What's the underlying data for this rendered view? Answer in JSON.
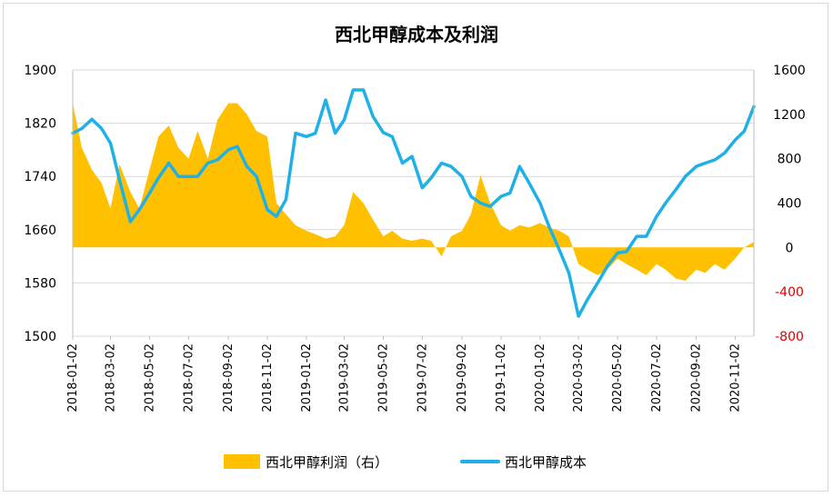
{
  "chart_data": {
    "type": "line",
    "title": "西北甲醇成本及利润",
    "left_axis": {
      "ylim": [
        1500,
        1900
      ],
      "ticks": [
        "1900",
        "1820",
        "1740",
        "1660",
        "1580",
        "1500"
      ]
    },
    "right_axis": {
      "ylim": [
        -800,
        1600
      ],
      "ticks": [
        "1600",
        "1200",
        "800",
        "400",
        "0",
        "-400",
        "-800"
      ],
      "negative_color": "#e00000"
    },
    "x_tick_labels": [
      "2018-01-02",
      "2018-03-02",
      "2018-05-02",
      "2018-07-02",
      "2018-09-02",
      "2018-11-02",
      "2019-01-02",
      "2019-03-02",
      "2019-05-02",
      "2019-07-02",
      "2019-09-02",
      "2019-11-02",
      "2020-01-02",
      "2020-03-02",
      "2020-05-02",
      "2020-07-02",
      "2020-09-02",
      "2020-11-02"
    ],
    "grid": true,
    "legend_position": "bottom",
    "series": [
      {
        "name": "西北甲醇利润（右）",
        "type": "area",
        "axis": "right",
        "color": "#ffc000",
        "x": [
          "2018-01-02",
          "2018-01-16",
          "2018-02-01",
          "2018-02-16",
          "2018-03-02",
          "2018-03-16",
          "2018-04-02",
          "2018-04-16",
          "2018-05-02",
          "2018-05-16",
          "2018-06-01",
          "2018-06-16",
          "2018-07-02",
          "2018-07-16",
          "2018-08-01",
          "2018-08-16",
          "2018-09-02",
          "2018-09-16",
          "2018-10-01",
          "2018-10-16",
          "2018-11-02",
          "2018-11-16",
          "2018-12-01",
          "2018-12-16",
          "2019-01-02",
          "2019-01-16",
          "2019-02-01",
          "2019-02-16",
          "2019-03-02",
          "2019-03-16",
          "2019-04-01",
          "2019-04-16",
          "2019-05-02",
          "2019-05-16",
          "2019-06-01",
          "2019-06-16",
          "2019-07-02",
          "2019-07-16",
          "2019-08-01",
          "2019-08-16",
          "2019-09-02",
          "2019-09-16",
          "2019-10-01",
          "2019-10-16",
          "2019-11-02",
          "2019-11-16",
          "2019-12-01",
          "2019-12-16",
          "2020-01-02",
          "2020-01-16",
          "2020-02-01",
          "2020-02-16",
          "2020-03-02",
          "2020-03-16",
          "2020-04-01",
          "2020-04-16",
          "2020-05-02",
          "2020-05-16",
          "2020-06-01",
          "2020-06-16",
          "2020-07-02",
          "2020-07-16",
          "2020-08-01",
          "2020-08-16",
          "2020-09-02",
          "2020-09-16",
          "2020-10-01",
          "2020-10-16",
          "2020-11-02",
          "2020-11-16",
          "2020-12-01"
        ],
        "values": [
          1300,
          900,
          700,
          580,
          350,
          750,
          500,
          350,
          700,
          1000,
          1100,
          900,
          800,
          1050,
          800,
          1150,
          1300,
          1300,
          1200,
          1050,
          1000,
          400,
          300,
          200,
          150,
          120,
          80,
          100,
          200,
          500,
          400,
          250,
          100,
          150,
          80,
          60,
          80,
          60,
          -80,
          100,
          150,
          300,
          650,
          400,
          200,
          150,
          200,
          180,
          220,
          180,
          150,
          100,
          -150,
          -200,
          -250,
          -200,
          -100,
          -150,
          -200,
          -250,
          -150,
          -200,
          -280,
          -300,
          -200,
          -230,
          -150,
          -200,
          -100,
          0,
          50
        ]
      },
      {
        "name": "西北甲醇成本",
        "type": "line",
        "axis": "left",
        "color": "#1fb1e6",
        "x": [
          "2018-01-02",
          "2018-01-16",
          "2018-02-01",
          "2018-02-16",
          "2018-03-02",
          "2018-03-16",
          "2018-04-02",
          "2018-04-16",
          "2018-05-02",
          "2018-05-16",
          "2018-06-01",
          "2018-06-16",
          "2018-07-02",
          "2018-07-16",
          "2018-08-01",
          "2018-08-16",
          "2018-09-02",
          "2018-09-16",
          "2018-10-01",
          "2018-10-16",
          "2018-11-02",
          "2018-11-16",
          "2018-12-01",
          "2018-12-16",
          "2019-01-02",
          "2019-01-16",
          "2019-02-01",
          "2019-02-16",
          "2019-03-02",
          "2019-03-16",
          "2019-04-01",
          "2019-04-16",
          "2019-05-02",
          "2019-05-16",
          "2019-06-01",
          "2019-06-16",
          "2019-07-02",
          "2019-07-16",
          "2019-08-01",
          "2019-08-16",
          "2019-09-02",
          "2019-09-16",
          "2019-10-01",
          "2019-10-16",
          "2019-11-02",
          "2019-11-16",
          "2019-12-01",
          "2019-12-16",
          "2020-01-02",
          "2020-01-16",
          "2020-02-01",
          "2020-02-16",
          "2020-03-02",
          "2020-03-16",
          "2020-04-01",
          "2020-04-16",
          "2020-05-02",
          "2020-05-16",
          "2020-06-01",
          "2020-06-16",
          "2020-07-02",
          "2020-07-16",
          "2020-08-01",
          "2020-08-16",
          "2020-09-02",
          "2020-09-16",
          "2020-10-01",
          "2020-10-16",
          "2020-11-02",
          "2020-11-16",
          "2020-12-01"
        ],
        "values": [
          1805,
          1812,
          1826,
          1812,
          1790,
          1735,
          1672,
          1690,
          1715,
          1738,
          1760,
          1740,
          1740,
          1740,
          1760,
          1765,
          1780,
          1785,
          1755,
          1740,
          1690,
          1680,
          1705,
          1805,
          1800,
          1805,
          1855,
          1805,
          1825,
          1870,
          1870,
          1830,
          1806,
          1800,
          1760,
          1770,
          1723,
          1738,
          1760,
          1755,
          1740,
          1710,
          1700,
          1695,
          1710,
          1715,
          1755,
          1730,
          1700,
          1665,
          1630,
          1595,
          1530,
          1555,
          1580,
          1605,
          1625,
          1627,
          1650,
          1650,
          1680,
          1700,
          1720,
          1740,
          1755,
          1760,
          1765,
          1775,
          1795,
          1808,
          1845
        ]
      }
    ]
  }
}
